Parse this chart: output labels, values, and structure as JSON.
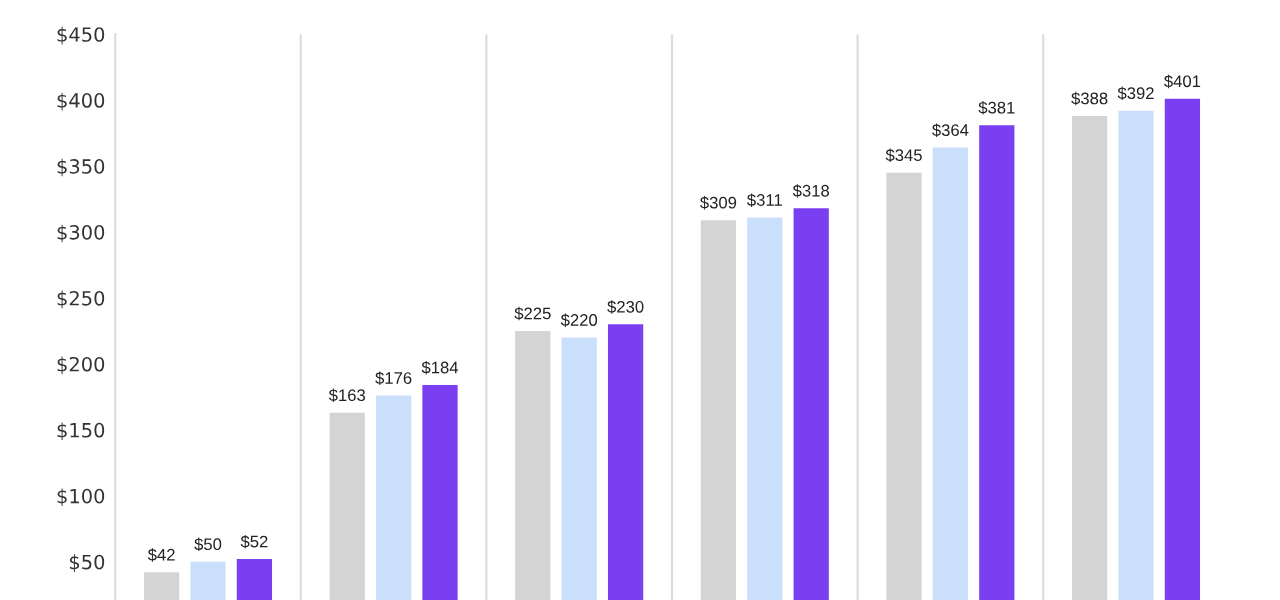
{
  "chart_data": {
    "type": "bar",
    "categories": [
      null,
      null,
      null,
      null,
      null,
      null
    ],
    "series": [
      {
        "color": "#d4d4d4",
        "values": [
          42,
          163,
          225,
          309,
          345,
          388
        ]
      },
      {
        "color": "#c9dffc",
        "values": [
          50,
          176,
          220,
          311,
          364,
          392
        ]
      },
      {
        "color": "#7b3ff2",
        "values": [
          52,
          184,
          230,
          318,
          381,
          401
        ]
      }
    ],
    "value_labels": [
      [
        "$42",
        "$163",
        "$225",
        "$309",
        "$345",
        "$388"
      ],
      [
        "$50",
        "$176",
        "$220",
        "$311",
        "$364",
        "$392"
      ],
      [
        "$52",
        "$184",
        "$230",
        "$318",
        "$381",
        "$401"
      ]
    ],
    "ylim": [
      21,
      450
    ],
    "yticks": [
      {
        "value": 50,
        "label": "$50"
      },
      {
        "value": 100,
        "label": "$100"
      },
      {
        "value": 150,
        "label": "$150"
      },
      {
        "value": 200,
        "label": "$200"
      },
      {
        "value": 250,
        "label": "$250"
      },
      {
        "value": 300,
        "label": "$300"
      },
      {
        "value": 350,
        "label": "$350"
      },
      {
        "value": 400,
        "label": "$400"
      },
      {
        "value": 450,
        "label": "$450"
      }
    ],
    "grid": "x",
    "tick_labels": "y",
    "legend": false
  }
}
